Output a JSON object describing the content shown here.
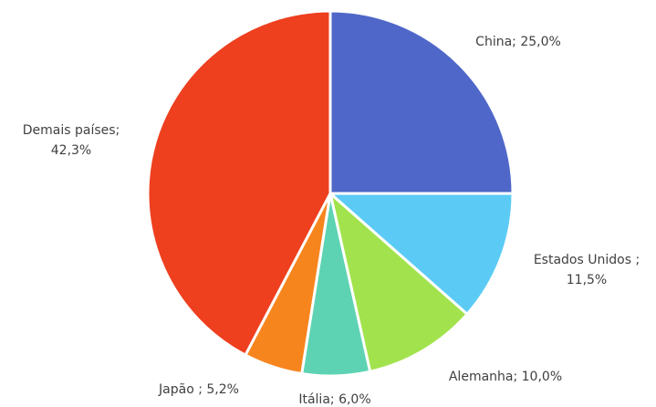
{
  "chart_data": {
    "type": "pie",
    "title": "",
    "start_angle_deg": 0,
    "direction": "clockwise",
    "legend": "none",
    "slices": [
      {
        "label": "China",
        "value": 25.0,
        "value_text": "25,0%",
        "color": "#4F67C8",
        "label_lines": [
          "China; 25,0%"
        ]
      },
      {
        "label": "Estados Unidos",
        "value": 11.5,
        "value_text": "11,5%",
        "color": "#5BCBF5",
        "label_lines": [
          "Estados Unidos ;",
          "11,5%"
        ]
      },
      {
        "label": "Alemanha",
        "value": 10.0,
        "value_text": "10,0%",
        "color": "#A2E34D",
        "label_lines": [
          "Alemanha; 10,0%"
        ]
      },
      {
        "label": "Itália",
        "value": 6.0,
        "value_text": "6,0%",
        "color": "#5DD3B3",
        "label_lines": [
          "Itália; 6,0%"
        ]
      },
      {
        "label": "Japão",
        "value": 5.2,
        "value_text": "5,2%",
        "color": "#F7851E",
        "label_lines": [
          "Japão ; 5,2%"
        ]
      },
      {
        "label": "Demais países",
        "value": 42.3,
        "value_text": "42,3%",
        "color": "#EE3F1F",
        "label_lines": [
          "Demais países;",
          "42,3%"
        ]
      }
    ]
  }
}
